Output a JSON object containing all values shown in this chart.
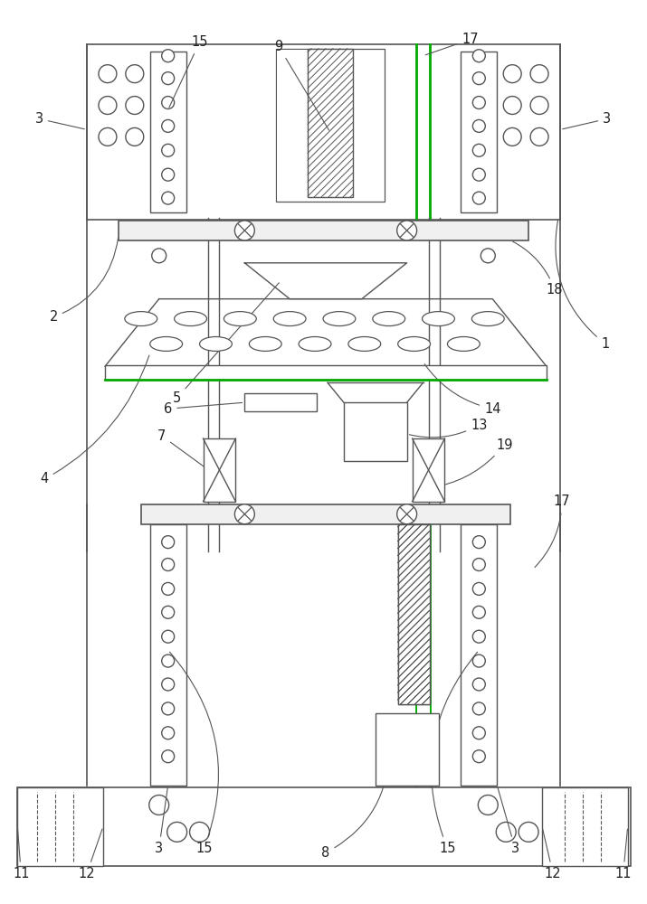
{
  "fig_width": 7.15,
  "fig_height": 10.0,
  "dpi": 100,
  "bg_color": "#ffffff",
  "lc": "#555555",
  "gc": "#00aa00",
  "lw": 1.0
}
